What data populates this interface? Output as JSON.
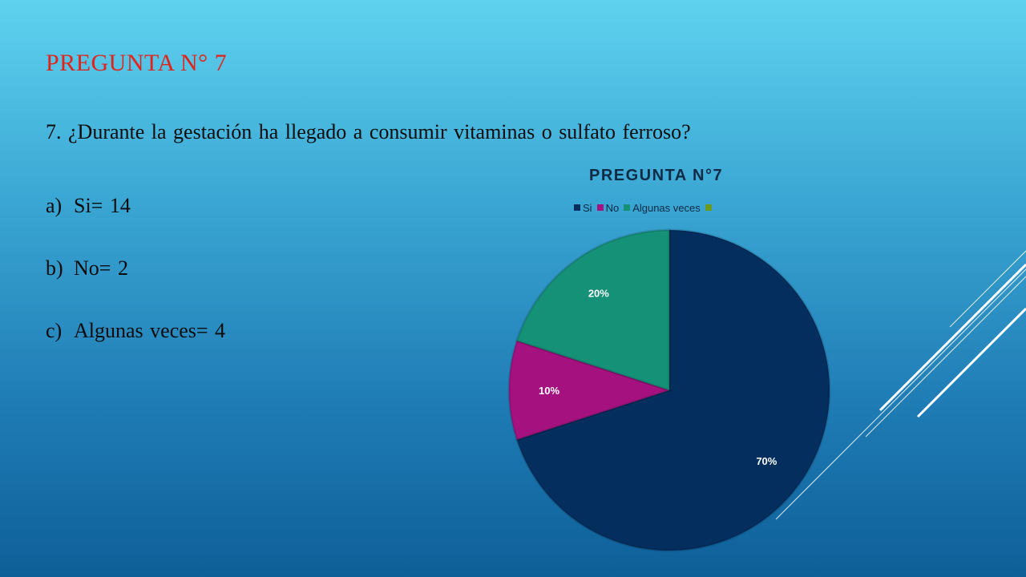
{
  "slide": {
    "title": "PREGUNTA N° 7",
    "question": "7. ¿Durante la gestación ha llegado a consumir vitaminas o sulfato ferroso?",
    "options": [
      {
        "letter": "a)",
        "text": "Si= 14"
      },
      {
        "letter": "b)",
        "text": "No= 2"
      },
      {
        "letter": "c)",
        "text": "Algunas veces= 4"
      }
    ]
  },
  "chart_data": {
    "type": "pie",
    "title": "PREGUNTA N°7",
    "categories": [
      "Si",
      "No",
      "Algunas veces",
      ""
    ],
    "values": [
      70,
      10,
      20,
      0
    ],
    "labels": [
      "70%",
      "10%",
      "20%",
      ""
    ],
    "colors": [
      "#042e5e",
      "#a5117f",
      "#159177",
      "#6c9a21"
    ],
    "legend_position": "top"
  },
  "colors": {
    "title_red": "#e0241b",
    "text": "#0b0b0b"
  }
}
